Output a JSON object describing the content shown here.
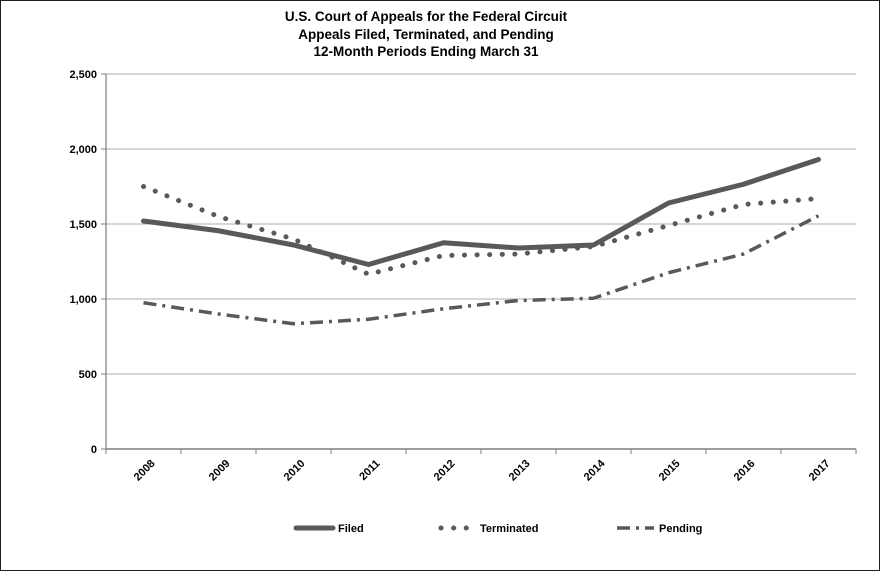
{
  "page": {
    "title_lines": [
      "U.S. Court of Appeals for the Federal Circuit",
      "Appeals Filed, Terminated, and Pending",
      "12-Month Periods Ending March 31"
    ]
  },
  "colors": {
    "series_line": "#595959",
    "gridline": "#aeaeae",
    "axis_line": "#7f7f7f",
    "text": "#000000",
    "background": "#ffffff",
    "page_border": "#1f1f1f"
  },
  "chart_data": {
    "type": "line",
    "title": "U.S. Court of Appeals for the Federal Circuit",
    "subtitle": "Appeals Filed, Terminated, and Pending — 12-Month Periods Ending March 31",
    "categories": [
      "2008",
      "2009",
      "2010",
      "2011",
      "2012",
      "2013",
      "2014",
      "2015",
      "2016",
      "2017"
    ],
    "series": [
      {
        "name": "Filed",
        "style": "solid",
        "values": [
          1520,
          1455,
          1360,
          1230,
          1375,
          1340,
          1360,
          1640,
          1765,
          1930
        ]
      },
      {
        "name": "Terminated",
        "style": "dotted",
        "values": [
          1750,
          1550,
          1400,
          1165,
          1290,
          1300,
          1350,
          1490,
          1630,
          1670
        ]
      },
      {
        "name": "Pending",
        "style": "dashdot",
        "values": [
          975,
          900,
          835,
          865,
          935,
          990,
          1005,
          1175,
          1300,
          1555
        ]
      }
    ],
    "xlabel": "",
    "ylabel": "",
    "ylim": [
      0,
      2500
    ],
    "yticks": [
      0,
      500,
      1000,
      1500,
      2000,
      2500
    ],
    "ytick_labels": [
      "0",
      "500",
      "1,000",
      "1,500",
      "2,000",
      "2,500"
    ],
    "grid": true,
    "legend_position": "bottom"
  }
}
